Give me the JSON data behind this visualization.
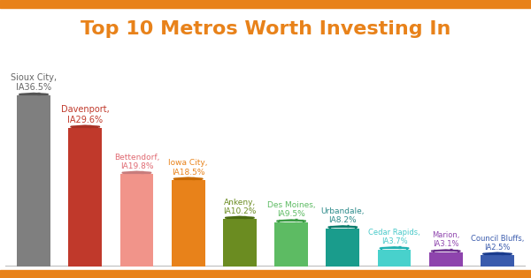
{
  "title": "Top 10 Metros Worth Investing In",
  "title_color": "#E8821A",
  "title_fontsize": 16,
  "categories": [
    "Sioux City,\nIA36.5%",
    "Davenport,\nIA29.6%",
    "Bettendorf,\nIA19.8%",
    "Iowa City,\nIA18.5%",
    "Ankeny,\nIA10.2%",
    "Des Moines,\nIA9.5%",
    "Urbandale,\nIA8.2%",
    "Cedar Rapids,\nIA3.7%",
    "Marion,\nIA3.1%",
    "Council Bluffs,\nIA2.5%"
  ],
  "label_colors": [
    "#666666",
    "#C0392B",
    "#E06A72",
    "#E8821A",
    "#6B8C21",
    "#5DBB63",
    "#2E8B8B",
    "#48C9C9",
    "#8E44AD",
    "#3A5BAD"
  ],
  "values": [
    36.5,
    29.6,
    19.8,
    18.5,
    10.2,
    9.5,
    8.2,
    3.7,
    3.1,
    2.5
  ],
  "bar_colors": [
    "#7F7F7F",
    "#C0392B",
    "#F1948A",
    "#E8821A",
    "#6B8C21",
    "#5DBB63",
    "#1A9C8C",
    "#48D1CC",
    "#8E44AD",
    "#3A5BAD"
  ],
  "house_outline_colors": [
    "#555555",
    "#A93226",
    "#C87C7C",
    "#C86A00",
    "#4A6A10",
    "#3A9B43",
    "#0A7C6C",
    "#20B1B1",
    "#6C2E8C",
    "#1A3B8D"
  ],
  "background_color": "#FFFFFF",
  "top_bar_color": "#E8821A",
  "bottom_bar_color": "#E8821A",
  "ylim": [
    0,
    48
  ],
  "bar_width": 0.65,
  "label_fontsizes": [
    7.0,
    7.0,
    6.5,
    6.5,
    6.5,
    6.5,
    6.5,
    6.0,
    6.0,
    6.0
  ]
}
